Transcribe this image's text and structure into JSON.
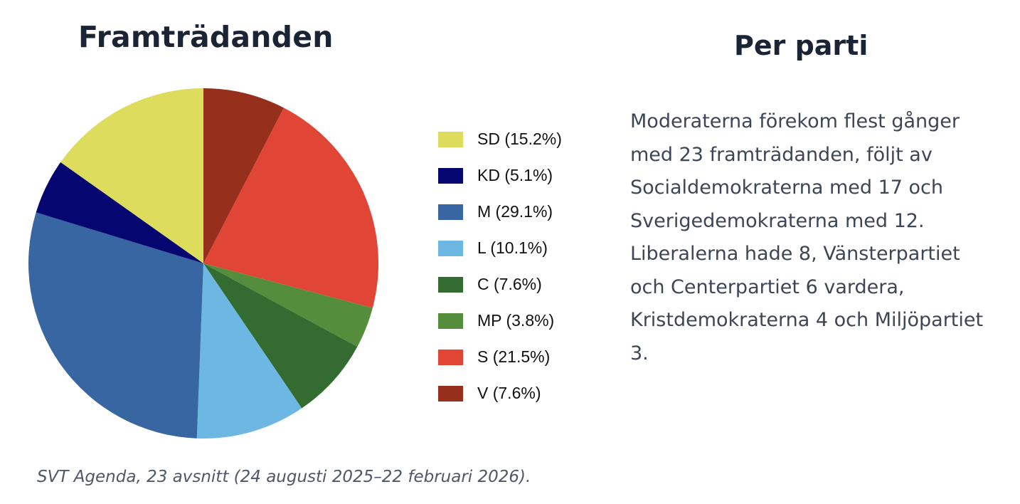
{
  "chart_data": {
    "type": "pie",
    "title": "Framträdanden",
    "legend_position": "right",
    "slices": [
      {
        "label": "V (7.6%)",
        "value": 7.6,
        "color": "#96301c"
      },
      {
        "label": "S (21.5%)",
        "value": 21.5,
        "color": "#e04536"
      },
      {
        "label": "MP (3.8%)",
        "value": 3.8,
        "color": "#548e3c"
      },
      {
        "label": "C (7.6%)",
        "value": 7.6,
        "color": "#336b30"
      },
      {
        "label": "L (10.1%)",
        "value": 10.1,
        "color": "#6db7e3"
      },
      {
        "label": "M (29.1%)",
        "value": 29.1,
        "color": "#3766a3"
      },
      {
        "label": "KD (5.1%)",
        "value": 5.1,
        "color": "#05066f"
      },
      {
        "label": "SD (15.2%)",
        "value": 15.2,
        "color": "#dedc5c"
      }
    ],
    "legend_order": [
      "SD (15.2%)",
      "KD (5.1%)",
      "M (29.1%)",
      "L (10.1%)",
      "C (7.6%)",
      "MP (3.8%)",
      "S (21.5%)",
      "V (7.6%)"
    ]
  },
  "side": {
    "title": "Per parti",
    "text": "Moderaterna förekom flest gånger med 23 framträdanden, följt av Socialdemokraterna med 17 och Sverigedemokraterna med 12. Liberalerna hade 8, Vänsterpartiet och Centerpartiet 6 vardera, Kristdemokraterna 4 och Miljöpartiet 3."
  },
  "caption": "SVT Agenda, 23 avsnitt (24 augusti 2025–22 februari 2026)."
}
